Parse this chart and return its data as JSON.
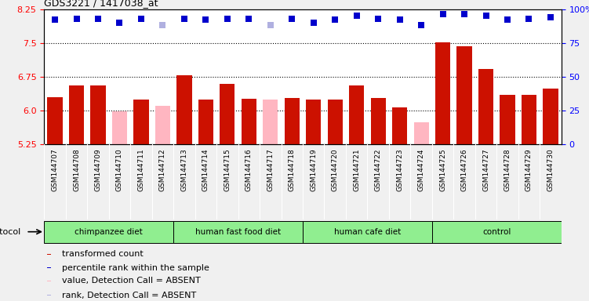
{
  "title": "GDS3221 / 1417038_at",
  "samples": [
    "GSM144707",
    "GSM144708",
    "GSM144709",
    "GSM144710",
    "GSM144711",
    "GSM144712",
    "GSM144713",
    "GSM144714",
    "GSM144715",
    "GSM144716",
    "GSM144717",
    "GSM144718",
    "GSM144719",
    "GSM144720",
    "GSM144721",
    "GSM144722",
    "GSM144723",
    "GSM144724",
    "GSM144725",
    "GSM144726",
    "GSM144727",
    "GSM144728",
    "GSM144729",
    "GSM144730"
  ],
  "bar_values": [
    6.3,
    6.55,
    6.55,
    5.98,
    6.25,
    6.1,
    6.78,
    6.25,
    6.6,
    6.27,
    6.25,
    6.28,
    6.25,
    6.25,
    6.55,
    6.28,
    6.07,
    5.75,
    7.52,
    7.42,
    6.92,
    6.35,
    6.35,
    6.48
  ],
  "absent_mask": [
    false,
    false,
    false,
    true,
    false,
    true,
    false,
    false,
    false,
    false,
    true,
    false,
    false,
    false,
    false,
    false,
    false,
    true,
    false,
    false,
    false,
    false,
    false,
    false
  ],
  "percentile_values": [
    92,
    93,
    93,
    90,
    93,
    88,
    93,
    92,
    93,
    93,
    88,
    93,
    90,
    92,
    95,
    93,
    92,
    88,
    96,
    96,
    95,
    92,
    93,
    94
  ],
  "absent_rank_mask": [
    false,
    false,
    false,
    false,
    false,
    true,
    false,
    false,
    false,
    false,
    true,
    false,
    false,
    false,
    false,
    false,
    false,
    false,
    false,
    false,
    false,
    false,
    false,
    false
  ],
  "ylim_left": [
    5.25,
    8.25
  ],
  "ylim_right": [
    0,
    100
  ],
  "yticks_left": [
    5.25,
    6.0,
    6.75,
    7.5,
    8.25
  ],
  "yticks_right": [
    0,
    25,
    50,
    75,
    100
  ],
  "protocols": [
    {
      "label": "chimpanzee diet",
      "start": 0,
      "end": 6
    },
    {
      "label": "human fast food diet",
      "start": 6,
      "end": 12
    },
    {
      "label": "human cafe diet",
      "start": 12,
      "end": 18
    },
    {
      "label": "control",
      "start": 18,
      "end": 24
    }
  ],
  "bar_color_present": "#cc1100",
  "bar_color_absent": "#ffb6c1",
  "dot_color_present": "#0000cc",
  "dot_color_absent": "#b0b0e0",
  "dot_size": 35,
  "background_color": "#f0f0f0",
  "xticklabel_bg": "#c8c8c8",
  "protocol_color": "#90ee90",
  "plot_bg": "#ffffff",
  "legend_items": [
    {
      "color": "#cc1100",
      "label": "transformed count"
    },
    {
      "color": "#0000cc",
      "label": "percentile rank within the sample"
    },
    {
      "color": "#ffb6c1",
      "label": "value, Detection Call = ABSENT"
    },
    {
      "color": "#b0b0e0",
      "label": "rank, Detection Call = ABSENT"
    }
  ]
}
